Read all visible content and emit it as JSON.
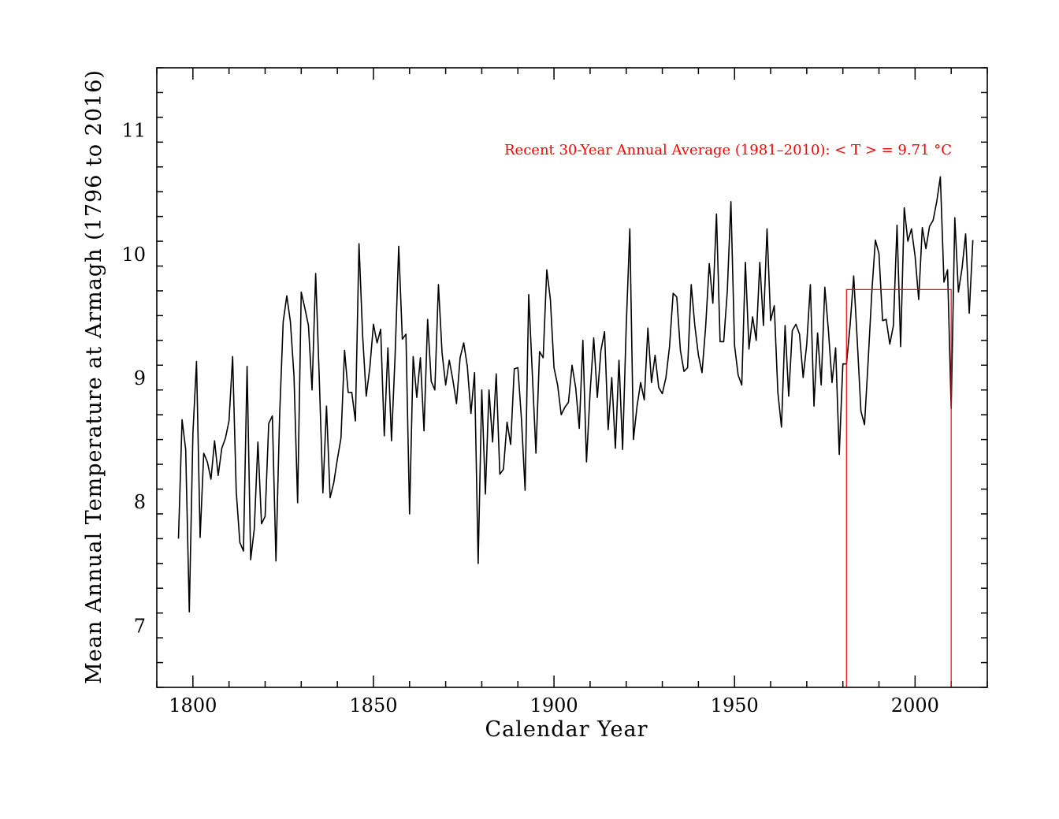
{
  "chart_data": {
    "type": "line",
    "title": "",
    "xlabel": "Calendar Year",
    "ylabel": "Mean Annual Temperature at Armagh (1796 to 2016)",
    "xlim": [
      1790,
      2020
    ],
    "ylim": [
      6.5,
      11.5
    ],
    "x_ticks": [
      1800,
      1850,
      1900,
      1950,
      2000
    ],
    "x_tick_labels": [
      "1800",
      "1850",
      "1900",
      "1950",
      "2000"
    ],
    "y_ticks": [
      7,
      8,
      9,
      10,
      11
    ],
    "y_tick_labels": [
      "7",
      "8",
      "9",
      "10",
      "11"
    ],
    "grid": false,
    "legend": "none",
    "line_color": "#000000",
    "series": [
      {
        "x_start": 1796,
        "x_step": 1,
        "values": [
          7.7,
          8.66,
          8.42,
          7.11,
          8.55,
          9.13,
          7.71,
          8.39,
          8.32,
          8.18,
          8.49,
          8.21,
          8.43,
          8.51,
          8.65,
          9.17,
          8.08,
          7.67,
          7.6,
          9.09,
          7.53,
          7.78,
          8.48,
          7.82,
          7.88,
          8.63,
          8.69,
          7.52,
          8.68,
          9.45,
          9.66,
          9.45,
          9.01,
          7.99,
          9.69,
          9.56,
          9.42,
          8.9,
          9.84,
          8.99,
          8.07,
          8.77,
          8.03,
          8.15,
          8.34,
          8.51,
          9.22,
          8.88,
          8.88,
          8.65,
          10.08,
          9.34,
          8.85,
          9.08,
          9.43,
          9.28,
          9.39,
          8.53,
          9.24,
          8.49,
          9.18,
          10.06,
          9.31,
          9.35,
          7.9,
          9.17,
          8.84,
          9.16,
          8.57,
          9.47,
          8.97,
          8.9,
          9.75,
          9.2,
          8.94,
          9.14,
          8.98,
          8.79,
          9.16,
          9.28,
          9.09,
          8.71,
          9.04,
          7.5,
          8.9,
          8.06,
          8.9,
          8.48,
          9.03,
          8.22,
          8.26,
          8.64,
          8.46,
          9.07,
          9.08,
          8.66,
          8.09,
          9.67,
          9.03,
          8.39,
          9.21,
          9.16,
          9.87,
          9.63,
          9.08,
          8.94,
          8.7,
          8.76,
          8.8,
          9.1,
          8.92,
          8.59,
          9.3,
          8.32,
          8.88,
          9.32,
          8.84,
          9.22,
          9.37,
          8.58,
          9.0,
          8.43,
          9.14,
          8.42,
          9.41,
          10.2,
          8.5,
          8.77,
          8.96,
          8.82,
          9.4,
          8.96,
          9.18,
          8.92,
          8.87,
          9.0,
          9.25,
          9.68,
          9.65,
          9.22,
          9.05,
          9.08,
          9.75,
          9.42,
          9.18,
          9.04,
          9.41,
          9.92,
          9.6,
          10.32,
          9.29,
          9.29,
          9.7,
          10.42,
          9.26,
          9.02,
          8.94,
          9.93,
          9.23,
          9.49,
          9.3,
          9.93,
          9.42,
          10.2,
          9.46,
          9.58,
          8.88,
          8.6,
          9.42,
          8.85,
          9.38,
          9.43,
          9.35,
          9.0,
          9.27,
          9.75,
          8.77,
          9.36,
          8.94,
          9.73,
          9.38,
          8.96,
          9.24,
          8.38,
          9.11,
          9.11,
          9.42,
          9.82,
          9.29,
          8.73,
          8.62,
          9.13,
          9.68,
          10.11,
          10.0,
          9.46,
          9.47,
          9.27,
          9.42,
          10.23,
          9.25,
          10.37,
          10.1,
          10.2,
          9.98,
          9.63,
          10.21,
          10.04,
          10.22,
          10.27,
          10.42,
          10.62,
          9.77,
          9.87,
          8.75,
          10.29,
          9.69,
          9.88,
          10.16,
          9.52,
          10.11
        ]
      }
    ],
    "annotations": [
      {
        "text": "Recent 30-Year Annual Average (1981–2010): < T > = 9.71 °C",
        "color": "#ff0000",
        "box": {
          "x_from": 1981,
          "x_to": 2010,
          "y_from": 6.5,
          "y_to": 9.71
        }
      }
    ]
  }
}
